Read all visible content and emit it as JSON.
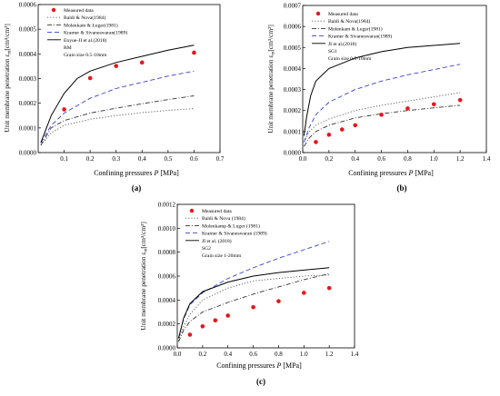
{
  "chart_data": [
    {
      "type": "line",
      "panel_label": "(a)",
      "xlabel_text": "Confining pressures ",
      "xlabel_var": "P",
      "xlabel_unit": " [MPa]",
      "ylabel_text": "Unit membrane penetration ε",
      "ylabel_sub": "m",
      "ylabel_unit": "[cm³/cm²]",
      "xlim": [
        0,
        0.7
      ],
      "ylim": [
        0,
        0.0006
      ],
      "x_ticks": [
        0.1,
        0.2,
        0.3,
        0.4,
        0.5,
        0.6,
        0.7
      ],
      "x_tick_labels": [
        "0.1",
        "0.2",
        "0.3",
        "0.4",
        "0.5",
        "0.6",
        "0.7"
      ],
      "y_ticks": [
        0,
        0.0001,
        0.0002,
        0.0003,
        0.0004,
        0.0005,
        0.0006
      ],
      "y_tick_labels": [
        "0.0000",
        "0.0001",
        "0.0002",
        "0.0003",
        "0.0004",
        "0.0005",
        "0.0006"
      ],
      "legend": {
        "position": "top-left",
        "entries": [
          "Measured data",
          "Baldi & Nova(1984)",
          "Molenkam & Luger(1981)",
          "Kramer & Sivaneswaran(1989)",
          "Enyue-JI et al.(2018)"
        ],
        "notes": [
          "RM",
          "Grain size 0.5-10mm"
        ]
      },
      "measured": {
        "x": [
          0.1,
          0.2,
          0.3,
          0.4,
          0.6
        ],
        "y": [
          0.000175,
          0.000302,
          0.000351,
          0.000365,
          0.000405
        ]
      },
      "curves": [
        {
          "style": "dot",
          "color": "#555555",
          "x": [
            0.01,
            0.05,
            0.1,
            0.2,
            0.3,
            0.4,
            0.5,
            0.6
          ],
          "y": [
            3e-05,
            8e-05,
            0.00011,
            0.000135,
            0.00015,
            0.000162,
            0.000171,
            0.000178
          ]
        },
        {
          "style": "dashdot",
          "color": "#333333",
          "x": [
            0.01,
            0.05,
            0.1,
            0.2,
            0.3,
            0.4,
            0.5,
            0.6
          ],
          "y": [
            3e-05,
            0.0001,
            0.00013,
            0.00016,
            0.00018,
            0.000198,
            0.000215,
            0.00023
          ]
        },
        {
          "style": "dash",
          "color": "#3344cc",
          "x": [
            0.01,
            0.05,
            0.1,
            0.2,
            0.3,
            0.4,
            0.5,
            0.6
          ],
          "y": [
            4e-05,
            0.00011,
            0.00016,
            0.00022,
            0.00026,
            0.000285,
            0.00031,
            0.00033
          ]
        },
        {
          "style": "solid",
          "color": "#000000",
          "x": [
            0.01,
            0.05,
            0.1,
            0.15,
            0.2,
            0.3,
            0.4,
            0.5,
            0.6
          ],
          "y": [
            4e-05,
            0.00015,
            0.00024,
            0.0003,
            0.00033,
            0.000365,
            0.00039,
            0.000415,
            0.000435
          ]
        }
      ]
    },
    {
      "type": "line",
      "panel_label": "(b)",
      "xlabel_text": "Confining pressures ",
      "xlabel_var": "P",
      "xlabel_unit": " [MPa]",
      "ylabel_text": "Unit membrane penetration ε",
      "ylabel_sub": "m",
      "ylabel_unit": "[cm³/cm²]",
      "xlim": [
        0,
        1.4
      ],
      "ylim": [
        0,
        0.0007
      ],
      "x_ticks": [
        0.0,
        0.2,
        0.4,
        0.6,
        0.8,
        1.0,
        1.2,
        1.4
      ],
      "x_tick_labels": [
        "0.0",
        "0.2",
        "0.4",
        "0.6",
        "0.8",
        "1.0",
        "1.2",
        "1.4"
      ],
      "y_ticks": [
        0,
        0.0001,
        0.0002,
        0.0003,
        0.0004,
        0.0005,
        0.0006,
        0.0007
      ],
      "y_tick_labels": [
        "0.0000",
        "0.0001",
        "0.0002",
        "0.0003",
        "0.0004",
        "0.0005",
        "0.0006",
        "0.0007"
      ],
      "legend": {
        "position": "top-left",
        "entries": [
          "Measured data",
          "Baldi & Nova(1984)",
          "Molenkam & Luger(1981)",
          "Kramer & Sivaneswaran(1989)",
          "JI et al.(2018)"
        ],
        "notes": [
          "SG1",
          "Grain size 0.5-10mm"
        ]
      },
      "measured": {
        "x": [
          0.1,
          0.2,
          0.3,
          0.4,
          0.6,
          0.8,
          1.0,
          1.2
        ],
        "y": [
          5e-05,
          8.5e-05,
          0.00011,
          0.00013,
          0.00018,
          0.00021,
          0.00023,
          0.00025
        ]
      },
      "curves": [
        {
          "style": "dot",
          "color": "#555555",
          "x": [
            0.01,
            0.05,
            0.1,
            0.2,
            0.4,
            0.6,
            0.8,
            1.0,
            1.2
          ],
          "y": [
            5e-05,
            0.0001,
            0.00013,
            0.00016,
            0.0002,
            0.000225,
            0.000245,
            0.000265,
            0.000285
          ]
        },
        {
          "style": "dashdot",
          "color": "#333333",
          "x": [
            0.01,
            0.05,
            0.1,
            0.2,
            0.4,
            0.6,
            0.8,
            1.0,
            1.2
          ],
          "y": [
            3e-05,
            7e-05,
            0.0001,
            0.00013,
            0.000165,
            0.000185,
            0.0002,
            0.000213,
            0.000225
          ]
        },
        {
          "style": "dash",
          "color": "#3344cc",
          "x": [
            0.01,
            0.05,
            0.1,
            0.2,
            0.4,
            0.6,
            0.8,
            1.0,
            1.2
          ],
          "y": [
            5e-05,
            0.00012,
            0.00018,
            0.00024,
            0.0003,
            0.00034,
            0.00037,
            0.000395,
            0.00042
          ]
        },
        {
          "style": "solid",
          "color": "#000000",
          "x": [
            0.01,
            0.03,
            0.06,
            0.1,
            0.2,
            0.4,
            0.6,
            0.8,
            1.0,
            1.2
          ],
          "y": [
            8e-05,
            0.00017,
            0.00027,
            0.00034,
            0.0004,
            0.00045,
            0.00048,
            0.0005,
            0.00051,
            0.00052
          ]
        }
      ]
    },
    {
      "type": "line",
      "panel_label": "(c)",
      "xlabel_text": "Confining pressures ",
      "xlabel_var": "P",
      "xlabel_unit": " [MPa]",
      "ylabel_text": "Unit membrane penetration ε",
      "ylabel_sub": "m",
      "ylabel_unit": "[cm³/cm²]",
      "xlim": [
        0,
        1.4
      ],
      "ylim": [
        0,
        0.0012
      ],
      "x_ticks": [
        0.0,
        0.2,
        0.4,
        0.6,
        0.8,
        1.0,
        1.2,
        1.4
      ],
      "x_tick_labels": [
        "0.0",
        "0.2",
        "0.4",
        "0.6",
        "0.8",
        "1.0",
        "1.2",
        "1.4"
      ],
      "y_ticks": [
        0,
        0.0002,
        0.0004,
        0.0006,
        0.0008,
        0.001,
        0.0012
      ],
      "y_tick_labels": [
        "0.0000",
        "0.0002",
        "0.0004",
        "0.0006",
        "0.0008",
        "0.0010",
        "0.0012"
      ],
      "legend": {
        "position": "top-left",
        "entries": [
          "Measured data",
          "Baldi & Nova (1984)",
          "Molenkamp & Luger (1981)",
          "Kramer & Sivaneswaran (1989)",
          "JI et al. (2018)"
        ],
        "notes": [
          "SG2",
          "Grain size 1-20mm"
        ]
      },
      "measured": {
        "x": [
          0.1,
          0.2,
          0.3,
          0.4,
          0.6,
          0.8,
          1.0,
          1.2
        ],
        "y": [
          0.00011,
          0.00018,
          0.00023,
          0.00027,
          0.00034,
          0.00039,
          0.00046,
          0.0005
        ]
      },
      "curves": [
        {
          "style": "dot",
          "color": "#555555",
          "x": [
            0.01,
            0.05,
            0.1,
            0.2,
            0.4,
            0.6,
            0.8,
            1.0,
            1.2
          ],
          "y": [
            6e-05,
            0.00018,
            0.00028,
            0.0004,
            0.0005,
            0.00056,
            0.00058,
            0.0006,
            0.00061
          ]
        },
        {
          "style": "dashdot",
          "color": "#333333",
          "x": [
            0.01,
            0.05,
            0.1,
            0.2,
            0.4,
            0.6,
            0.8,
            1.0,
            1.2
          ],
          "y": [
            5e-05,
            0.00015,
            0.00022,
            0.0003,
            0.00038,
            0.00045,
            0.00051,
            0.00057,
            0.00062
          ]
        },
        {
          "style": "dash",
          "color": "#3344cc",
          "x": [
            0.01,
            0.05,
            0.1,
            0.2,
            0.4,
            0.6,
            0.8,
            1.0,
            1.2
          ],
          "y": [
            8e-05,
            0.00024,
            0.00036,
            0.00046,
            0.00058,
            0.00067,
            0.00075,
            0.00082,
            0.00089
          ]
        },
        {
          "style": "solid",
          "color": "#000000",
          "x": [
            0.01,
            0.05,
            0.1,
            0.2,
            0.4,
            0.6,
            0.8,
            1.0,
            1.2
          ],
          "y": [
            8e-05,
            0.00025,
            0.00037,
            0.00047,
            0.00055,
            0.0006,
            0.00063,
            0.00065,
            0.00067
          ]
        }
      ]
    }
  ]
}
